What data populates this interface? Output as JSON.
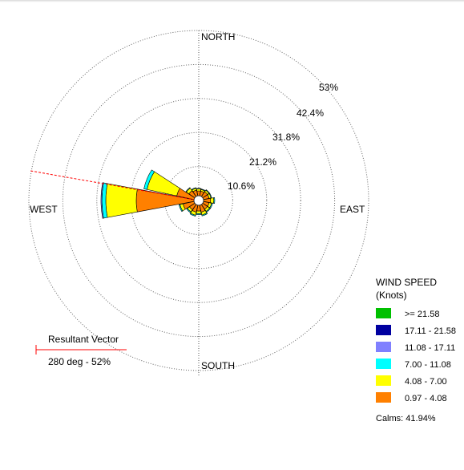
{
  "chart_data": {
    "type": "wind-rose",
    "directions": {
      "north": "NORTH",
      "south": "SOUTH",
      "east": "EAST",
      "west": "WEST"
    },
    "rings": [
      "10.6%",
      "21.2%",
      "31.8%",
      "42.4%",
      "53%"
    ],
    "ring_values": [
      10.6,
      21.2,
      31.8,
      42.4,
      53
    ],
    "legend": {
      "title_line1": "WIND SPEED",
      "title_line2": "(Knots)",
      "bins": [
        {
          "label": ">= 21.58",
          "color": "#00c000"
        },
        {
          "label": "17.11 - 21.58",
          "color": "#0000a0"
        },
        {
          "label": "11.08 - 17.11",
          "color": "#8080ff"
        },
        {
          "label": "7.00 - 11.08",
          "color": "#00ffff"
        },
        {
          "label": "4.08 - 7.00",
          "color": "#ffff00"
        },
        {
          "label": "0.97 - 4.08",
          "color": "#ff8000"
        }
      ]
    },
    "calms": "Calms: 41.94%",
    "resultant_vector": {
      "title": "Resultant Vector",
      "value": "280 deg - 52%",
      "direction_deg": 280,
      "percent": 52
    },
    "sectors": [
      {
        "center_deg": 0,
        "freqs": [
          1.5,
          0.6,
          0.2,
          0,
          0,
          0
        ]
      },
      {
        "center_deg": 22.5,
        "freqs": [
          1.5,
          0.5,
          0.2,
          0,
          0,
          0
        ]
      },
      {
        "center_deg": 45,
        "freqs": [
          1.8,
          0.6,
          0.2,
          0,
          0,
          0
        ]
      },
      {
        "center_deg": 67.5,
        "freqs": [
          1.8,
          0.6,
          0.2,
          0,
          0,
          0
        ]
      },
      {
        "center_deg": 90,
        "freqs": [
          2.2,
          1.0,
          0.3,
          0,
          0,
          0
        ]
      },
      {
        "center_deg": 112.5,
        "freqs": [
          1.8,
          0.8,
          0.3,
          0,
          0,
          0
        ]
      },
      {
        "center_deg": 135,
        "freqs": [
          1.8,
          0.8,
          0.3,
          0,
          0,
          0
        ]
      },
      {
        "center_deg": 157.5,
        "freqs": [
          2.2,
          0.9,
          0.3,
          0,
          0,
          0
        ]
      },
      {
        "center_deg": 180,
        "freqs": [
          1.8,
          0.8,
          0.3,
          0,
          0,
          0
        ]
      },
      {
        "center_deg": 202.5,
        "freqs": [
          2.2,
          1.0,
          0.3,
          0,
          0,
          0
        ]
      },
      {
        "center_deg": 225,
        "freqs": [
          2.0,
          0.8,
          0.3,
          0,
          0,
          0
        ]
      },
      {
        "center_deg": 247.5,
        "freqs": [
          3.5,
          1.0,
          0.3,
          0,
          0,
          0
        ]
      },
      {
        "center_deg": 270,
        "freqs": [
          18.0,
          9.5,
          1.2,
          0.3,
          0,
          0
        ]
      },
      {
        "center_deg": 292.5,
        "freqs": [
          5.5,
          9.5,
          1.0,
          0,
          0,
          0
        ]
      },
      {
        "center_deg": 315,
        "freqs": [
          2.2,
          1.0,
          0.2,
          0,
          0,
          0
        ]
      },
      {
        "center_deg": 337.5,
        "freqs": [
          1.8,
          0.6,
          0.2,
          0,
          0,
          0
        ]
      }
    ]
  }
}
